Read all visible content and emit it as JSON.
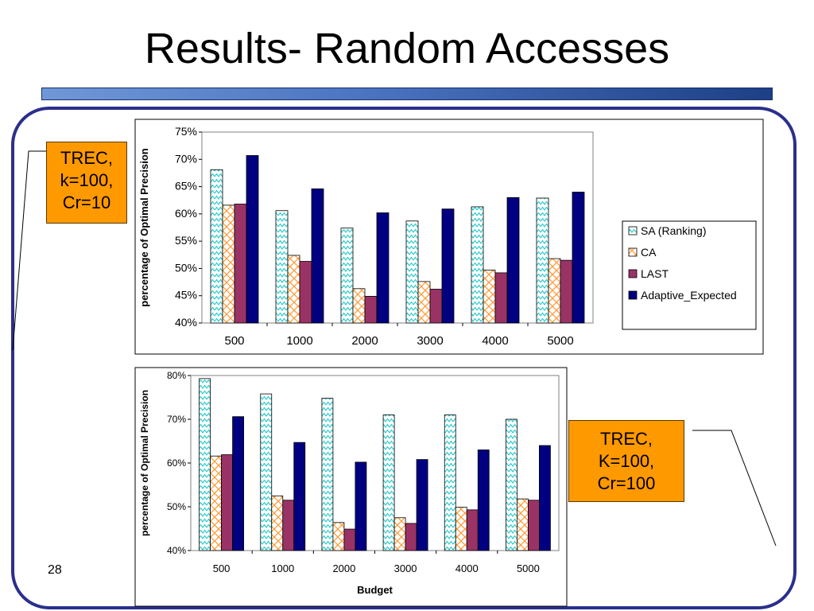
{
  "slide": {
    "title": "Results- Random Accesses",
    "slide_number": "28"
  },
  "callouts": [
    {
      "text": "TREC,\nk=100,\nCr=10"
    },
    {
      "text": "TREC,\nK=100,\nCr=100"
    }
  ],
  "colors": {
    "title_bar": "#4a74c0",
    "frame": "#2b2f8c",
    "callout": "#ff9900"
  },
  "chart_data": [
    {
      "type": "bar",
      "categories": [
        "500",
        "1000",
        "2000",
        "3000",
        "4000",
        "5000"
      ],
      "ylabel": "percentage of Optimal Precision",
      "xlabel": "",
      "ylim": [
        40,
        75
      ],
      "yticks": [
        "40%",
        "45%",
        "50%",
        "55%",
        "60%",
        "65%",
        "70%",
        "75%"
      ],
      "legend_position": "right",
      "series": [
        {
          "name": "SA (Ranking)",
          "color": "#80ffff",
          "values": [
            68.1,
            60.6,
            57.4,
            58.7,
            61.3,
            62.9
          ]
        },
        {
          "name": "CA",
          "color": "#ffcc99",
          "values": [
            61.6,
            52.4,
            46.3,
            47.6,
            49.7,
            51.8
          ]
        },
        {
          "name": "LAST",
          "color": "#993366",
          "values": [
            61.8,
            51.3,
            44.9,
            46.2,
            49.2,
            51.5
          ]
        },
        {
          "name": "Adaptive_Expected",
          "color": "#000080",
          "values": [
            70.7,
            64.6,
            60.2,
            60.9,
            63.0,
            64.0
          ]
        }
      ]
    },
    {
      "type": "bar",
      "categories": [
        "500",
        "1000",
        "2000",
        "3000",
        "4000",
        "5000"
      ],
      "ylabel": "percentage of Optimal Precision",
      "xlabel": "Budget",
      "ylim": [
        40,
        80
      ],
      "yticks": [
        "40%",
        "50%",
        "60%",
        "70%",
        "80%"
      ],
      "legend_position": "none",
      "series": [
        {
          "name": "",
          "color": "#80ffff",
          "values": [
            79.3,
            75.8,
            74.8,
            71.0,
            71.0,
            70.0
          ]
        },
        {
          "name": "",
          "color": "#ffcc99",
          "values": [
            61.6,
            52.5,
            46.4,
            47.5,
            49.9,
            51.8
          ]
        },
        {
          "name": "",
          "color": "#993366",
          "values": [
            61.9,
            51.5,
            44.9,
            46.2,
            49.3,
            51.5
          ]
        },
        {
          "name": "",
          "color": "#000080",
          "values": [
            70.6,
            64.7,
            60.2,
            60.8,
            63.0,
            64.0
          ]
        }
      ]
    }
  ]
}
